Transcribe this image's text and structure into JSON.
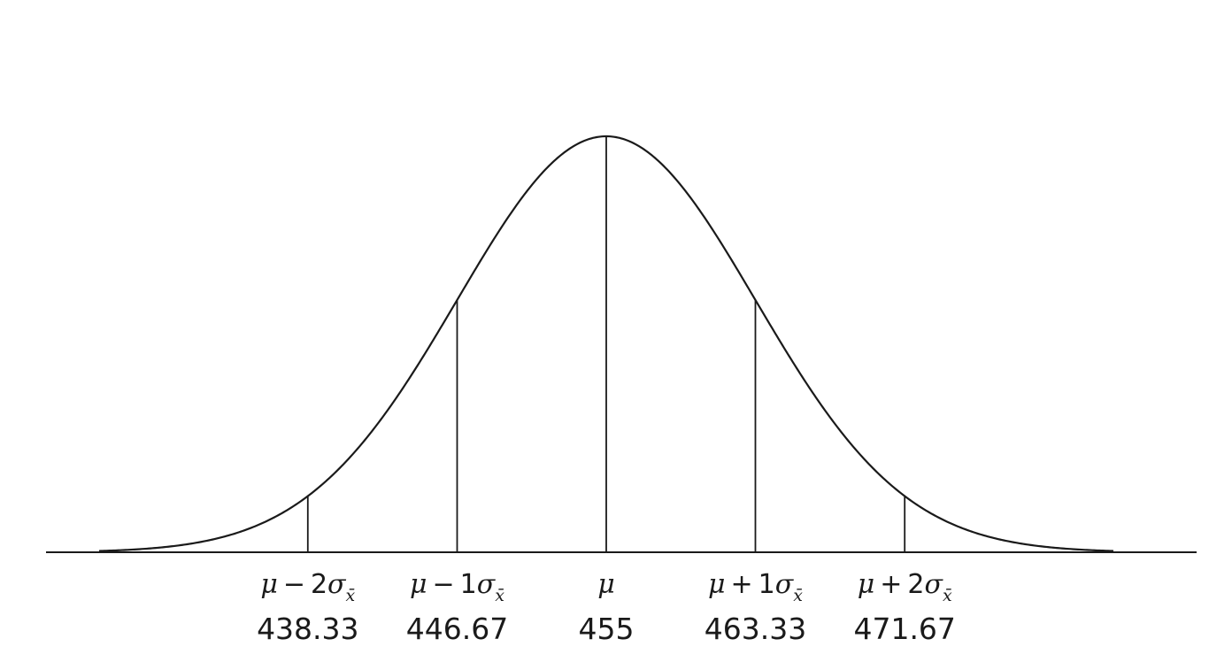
{
  "chart_data": {
    "type": "line",
    "distribution": "normal",
    "mean": 455,
    "std_error": 8.33,
    "markers": [
      {
        "symbol": "μ",
        "op": "−",
        "k": "2",
        "sigma": "σ",
        "subscript": "x̄",
        "value": 438.33,
        "value_label": "438.33"
      },
      {
        "symbol": "μ",
        "op": "−",
        "k": "1",
        "sigma": "σ",
        "subscript": "x̄",
        "value": 446.67,
        "value_label": "446.67"
      },
      {
        "symbol": "μ",
        "op": "",
        "k": "",
        "sigma": "",
        "subscript": "",
        "value": 455,
        "value_label": "455"
      },
      {
        "symbol": "μ",
        "op": "+",
        "k": "1",
        "sigma": "σ",
        "subscript": "x̄",
        "value": 463.33,
        "value_label": "463.33"
      },
      {
        "symbol": "μ",
        "op": "+",
        "k": "2",
        "sigma": "σ",
        "subscript": "x̄",
        "value": 471.67,
        "value_label": "471.67"
      }
    ],
    "x_range": [
      421.67,
      488.33
    ],
    "xlabel": "",
    "ylabel": "",
    "title": "",
    "grid": false,
    "colors": {
      "line": "#1a1a1a"
    }
  }
}
